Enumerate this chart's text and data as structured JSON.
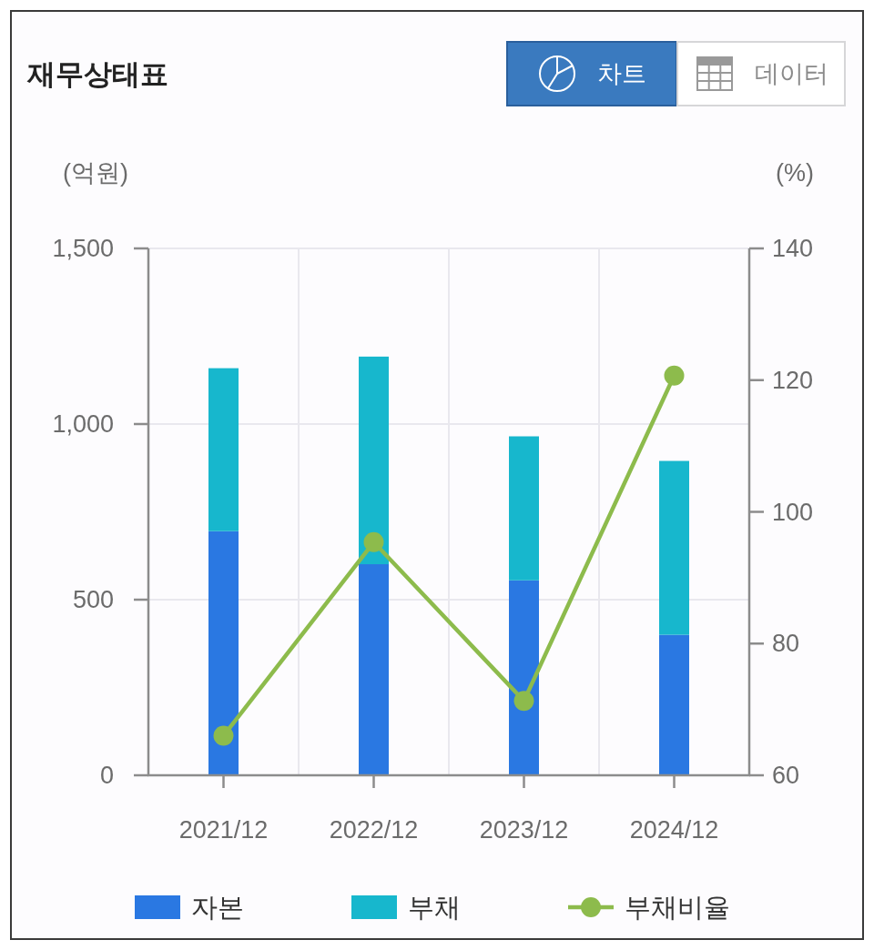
{
  "chart_data": {
    "type": "bar",
    "title": "재무상태표",
    "annotations": [
      "차트",
      "데이터"
    ],
    "ylabel": "(억원)",
    "y2label": "(%)",
    "categories": [
      "2021/12",
      "2022/12",
      "2023/12",
      "2024/12"
    ],
    "stacked": true,
    "series": [
      {
        "name": "자본",
        "color": "#2a78e2",
        "values": [
          695,
          601,
          555,
          400
        ]
      },
      {
        "name": "부채",
        "color": "#17b7cd",
        "values": [
          464,
          591,
          410,
          495
        ]
      },
      {
        "name": "부채비율",
        "type": "line",
        "axis": "y2",
        "color": "#8dbb4c",
        "marker": "circle",
        "values": [
          66.0,
          95.4,
          71.3,
          120.7
        ]
      }
    ],
    "ylim": [
      0,
      1500
    ],
    "yticks": [
      0,
      500,
      {
        "value": 1000,
        "label": "1,000"
      },
      {
        "value": 1500,
        "label": "1,500"
      }
    ],
    "y2lim": [
      60,
      140
    ],
    "y2ticks": [
      60,
      80,
      100,
      120,
      140
    ],
    "grid": true,
    "legend": "bottom"
  }
}
